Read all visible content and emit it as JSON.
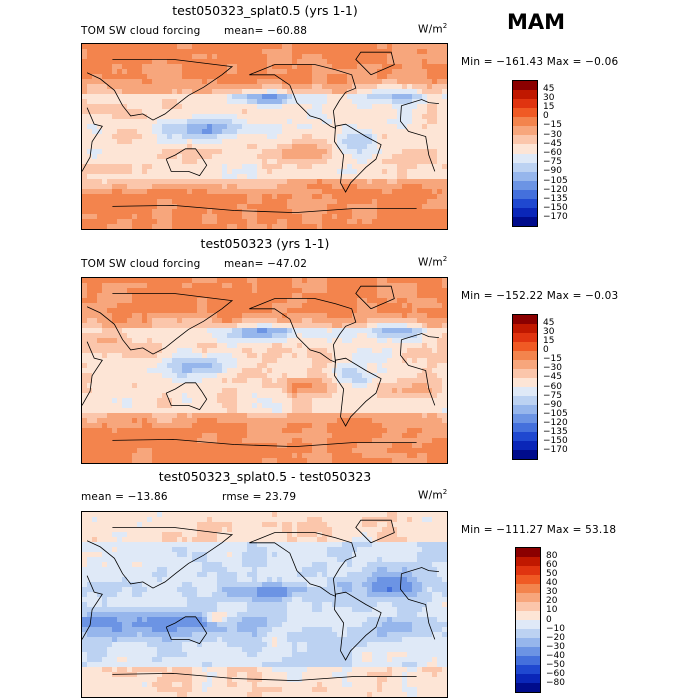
{
  "season": "MAM",
  "panels": [
    {
      "title": "test050323_splat0.5 (yrs 1-1)",
      "variable": "TOM SW cloud forcing",
      "mean_text": "mean= −60.88",
      "rmse_text": "",
      "units_base": "W/m",
      "units_exp": "2",
      "minmax_text": "Min = −161.43 Max =  −0.06",
      "colorbar": {
        "ticks": [
          "45",
          "30",
          "15",
          "0",
          "−15",
          "−30",
          "−45",
          "−60",
          "−75",
          "−90",
          "−105",
          "−120",
          "−135",
          "−150",
          "−170"
        ],
        "colors": [
          "#8b0000",
          "#c01800",
          "#e03410",
          "#f05a24",
          "#f3844d",
          "#f7a67c",
          "#fbc6ab",
          "#fde5d6",
          "#dfe9f7",
          "#bcd2f2",
          "#96b6ec",
          "#6c94e4",
          "#4470dc",
          "#1f48d0",
          "#0a26b8",
          "#000c8c"
        ]
      }
    },
    {
      "title": "test050323 (yrs 1-1)",
      "variable": "TOM SW cloud forcing",
      "mean_text": "mean= −47.02",
      "rmse_text": "",
      "units_base": "W/m",
      "units_exp": "2",
      "minmax_text": "Min = −152.22 Max =  −0.03",
      "colorbar": {
        "ticks": [
          "45",
          "30",
          "15",
          "0",
          "−15",
          "−30",
          "−45",
          "−60",
          "−75",
          "−90",
          "−105",
          "−120",
          "−135",
          "−150",
          "−170"
        ],
        "colors": [
          "#8b0000",
          "#c01800",
          "#e03410",
          "#f05a24",
          "#f3844d",
          "#f7a67c",
          "#fbc6ab",
          "#fde5d6",
          "#dfe9f7",
          "#bcd2f2",
          "#96b6ec",
          "#6c94e4",
          "#4470dc",
          "#1f48d0",
          "#0a26b8",
          "#000c8c"
        ]
      }
    },
    {
      "title": "test050323_splat0.5 - test050323",
      "variable": "",
      "mean_text": "mean = −13.86",
      "rmse_text": "rmse =  23.79",
      "units_base": "W/m",
      "units_exp": "2",
      "minmax_text": "Min = −111.27 Max =  53.18",
      "colorbar": {
        "ticks": [
          "80",
          "60",
          "50",
          "40",
          "30",
          "20",
          "10",
          "0",
          "−10",
          "−20",
          "−30",
          "−40",
          "−50",
          "−60",
          "−80"
        ],
        "colors": [
          "#8b0000",
          "#c01800",
          "#e03410",
          "#f05a24",
          "#f3844d",
          "#f7a67c",
          "#fbc6ab",
          "#fde5d6",
          "#dfe9f7",
          "#bcd2f2",
          "#96b6ec",
          "#6c94e4",
          "#4470dc",
          "#1f48d0",
          "#0a26b8",
          "#000c8c"
        ]
      }
    }
  ],
  "chart_data": [
    {
      "type": "heatmap",
      "title": "test050323_splat0.5 (yrs 1-1)",
      "variable": "TOM SW cloud forcing",
      "units": "W/m2",
      "mean": -60.88,
      "min": -161.43,
      "max": -0.06,
      "levels": [
        45,
        30,
        15,
        0,
        -15,
        -30,
        -45,
        -60,
        -75,
        -90,
        -105,
        -120,
        -135,
        -150,
        -170
      ]
    },
    {
      "type": "heatmap",
      "title": "test050323 (yrs 1-1)",
      "variable": "TOM SW cloud forcing",
      "units": "W/m2",
      "mean": -47.02,
      "min": -152.22,
      "max": -0.03,
      "levels": [
        45,
        30,
        15,
        0,
        -15,
        -30,
        -45,
        -60,
        -75,
        -90,
        -105,
        -120,
        -135,
        -150,
        -170
      ]
    },
    {
      "type": "heatmap",
      "title": "test050323_splat0.5 - test050323",
      "units": "W/m2",
      "mean": -13.86,
      "rmse": 23.79,
      "min": -111.27,
      "max": 53.18,
      "levels": [
        80,
        60,
        50,
        40,
        30,
        20,
        10,
        0,
        -10,
        -20,
        -30,
        -40,
        -50,
        -60,
        -80
      ]
    }
  ]
}
